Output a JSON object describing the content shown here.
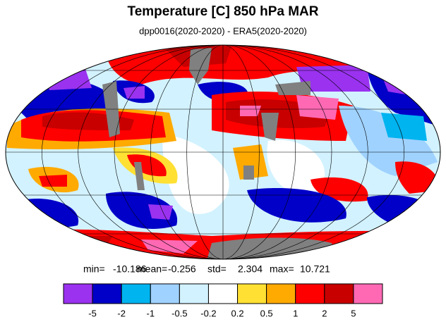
{
  "title": "Temperature [C] 850 hPa MAR",
  "subtitle": "dpp0016(2020-2020) - ERA5(2020-2020)",
  "stats": [
    {
      "label": "min=",
      "value": -10.186
    },
    {
      "label": "mean=",
      "value": -0.256
    },
    {
      "label": "std=",
      "value": 2.304
    },
    {
      "label": "max=",
      "value": 10.721
    }
  ],
  "colorbar": {
    "colors": [
      "#9a32f0",
      "#0000c8",
      "#00b4f0",
      "#a0d2ff",
      "#d2f2ff",
      "#ffffff",
      "#ffe033",
      "#ffaa00",
      "#ff0000",
      "#c80000",
      "#ff69b4"
    ],
    "labels": [
      -5,
      -2,
      -1,
      -0.5,
      -0.2,
      0.2,
      0.5,
      1,
      2,
      5
    ]
  }
}
